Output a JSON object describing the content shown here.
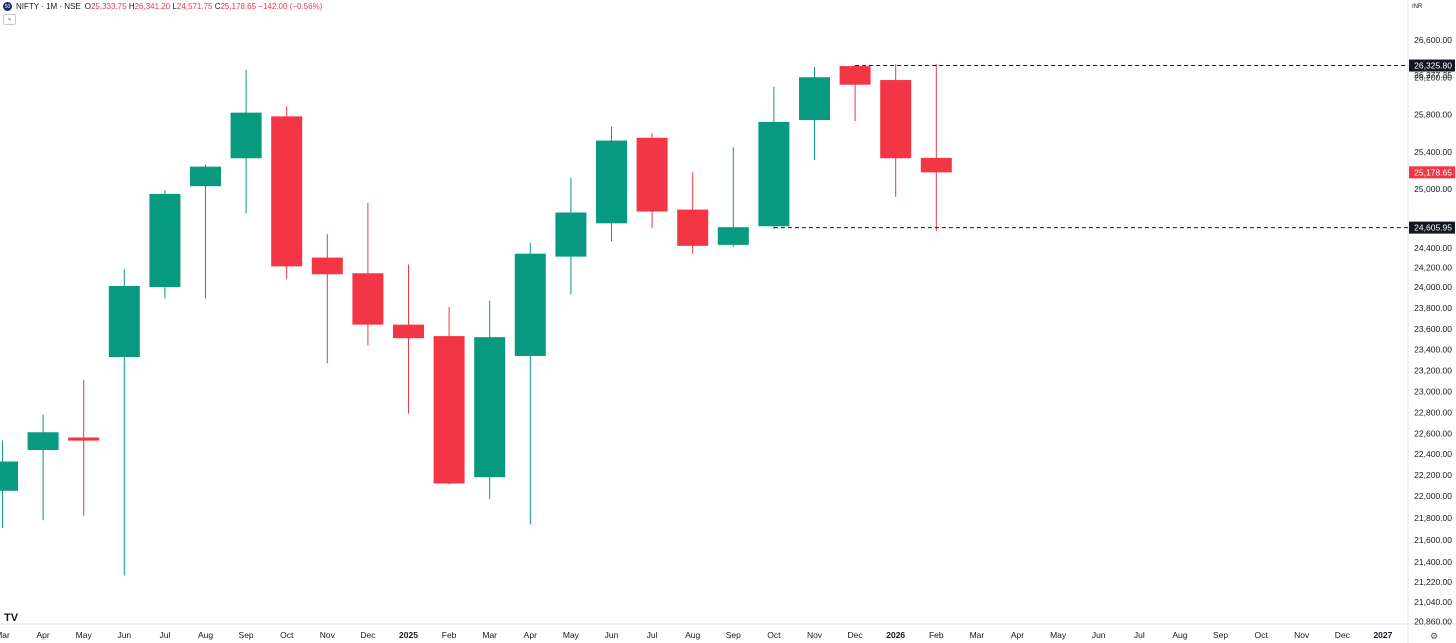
{
  "header": {
    "symbol": "NIFTY · 1M · NSE",
    "logo_icon": "nifty-logo-icon",
    "ohlc": {
      "open_label": "O",
      "open": "25,333.75",
      "high_label": "H",
      "high": "26,341.20",
      "low_label": "L",
      "low": "24,571.75",
      "close_label": "C",
      "close": "25,178.65",
      "change": "−142.00 (−0.56%)"
    },
    "collapse_glyph": "⌄",
    "currency": "INR"
  },
  "footer": {
    "tv_logo": "TV",
    "settings_icon": "gear-icon",
    "settings_glyph": "⚙"
  },
  "colors": {
    "up": "#089981",
    "down": "#f23645",
    "grid": "#f0f3fa",
    "line": "#131722"
  },
  "chart_data": {
    "type": "candlestick",
    "title": "",
    "interval": "1M",
    "candles": [
      {
        "label": "Mar",
        "open": 22050,
        "high": 22530,
        "low": 21710,
        "close": 22330
      },
      {
        "label": "Apr",
        "open": 22440,
        "high": 22780,
        "low": 21780,
        "close": 22610
      },
      {
        "label": "May",
        "open": 22560,
        "high": 23110,
        "low": 21820,
        "close": 22530
      },
      {
        "label": "Jun",
        "open": 23330,
        "high": 24180,
        "low": 21280,
        "close": 24010
      },
      {
        "label": "Jul",
        "open": 24000,
        "high": 24990,
        "low": 23890,
        "close": 24950
      },
      {
        "label": "Aug",
        "open": 25030,
        "high": 25260,
        "low": 23890,
        "close": 25240
      },
      {
        "label": "Sep",
        "open": 25330,
        "high": 26280,
        "low": 24750,
        "close": 25820
      },
      {
        "label": "Oct",
        "open": 25780,
        "high": 25890,
        "low": 24080,
        "close": 24210
      },
      {
        "label": "Nov",
        "open": 24300,
        "high": 24540,
        "low": 23270,
        "close": 24130
      },
      {
        "label": "Dec",
        "open": 24140,
        "high": 24860,
        "low": 23440,
        "close": 23640
      },
      {
        "label": "2025",
        "open": 23640,
        "high": 24230,
        "low": 22790,
        "close": 23510
      },
      {
        "label": "Feb",
        "open": 23530,
        "high": 23810,
        "low": 22110,
        "close": 22120
      },
      {
        "label": "Mar",
        "open": 22180,
        "high": 23870,
        "low": 21970,
        "close": 23520
      },
      {
        "label": "Apr",
        "open": 23340,
        "high": 24450,
        "low": 21740,
        "close": 24340
      },
      {
        "label": "May",
        "open": 24310,
        "high": 25120,
        "low": 23930,
        "close": 24760
      },
      {
        "label": "Jun",
        "open": 24650,
        "high": 25670,
        "low": 24470,
        "close": 25520
      },
      {
        "label": "Jul",
        "open": 25550,
        "high": 25600,
        "low": 24600,
        "close": 24770
      },
      {
        "label": "Aug",
        "open": 24790,
        "high": 25180,
        "low": 24340,
        "close": 24420
      },
      {
        "label": "Sep",
        "open": 24430,
        "high": 25450,
        "low": 24410,
        "close": 24610
      },
      {
        "label": "Oct",
        "open": 24620,
        "high": 26100,
        "low": 24590,
        "close": 25720
      },
      {
        "label": "Nov",
        "open": 25740,
        "high": 26310,
        "low": 25310,
        "close": 26200
      },
      {
        "label": "Dec",
        "open": 26320,
        "high": 26330,
        "low": 25730,
        "close": 26120
      },
      {
        "label": "2026",
        "open": 26170,
        "high": 26340,
        "low": 24920,
        "close": 25330
      },
      {
        "label": "Feb",
        "open": 25333.75,
        "high": 26341.2,
        "low": 24571.75,
        "close": 25178.65
      }
    ],
    "future_labels": [
      "Mar",
      "Apr",
      "May",
      "Jun",
      "Jul",
      "Aug",
      "Sep",
      "Oct",
      "Nov",
      "Dec",
      "2027"
    ],
    "y_ticks": [
      "26,600.00",
      "26,200.00",
      "25,800.00",
      "25,400.00",
      "25,000.00",
      "24,400.00",
      "24,200.00",
      "24,000.00",
      "23,800.00",
      "23,600.00",
      "23,400.00",
      "23,200.00",
      "23,000.00",
      "22,800.00",
      "22,600.00",
      "22,400.00",
      "22,200.00",
      "22,000.00",
      "21,800.00",
      "21,600.00",
      "21,400.00",
      "21,220.00",
      "21,040.00",
      "20,860.00"
    ],
    "y_tick_values": [
      26600,
      26200,
      25800,
      25400,
      25000,
      24400,
      24200,
      24000,
      23800,
      23600,
      23400,
      23200,
      23000,
      22800,
      22600,
      22400,
      22200,
      22000,
      21800,
      21600,
      21400,
      21220,
      21040,
      20860
    ],
    "ylim": [
      20800,
      26850
    ],
    "horizontal_lines": [
      {
        "value": 26325.8,
        "label": "26,325.80",
        "style": "dashed"
      },
      {
        "value": 24605.95,
        "label": "24,605.95",
        "style": "dashed"
      }
    ],
    "extra_price_labels": [
      {
        "value": 26277.35,
        "label": "26,277.35"
      }
    ],
    "last_price": {
      "value": 25178.65,
      "label": "25,178.65"
    }
  }
}
